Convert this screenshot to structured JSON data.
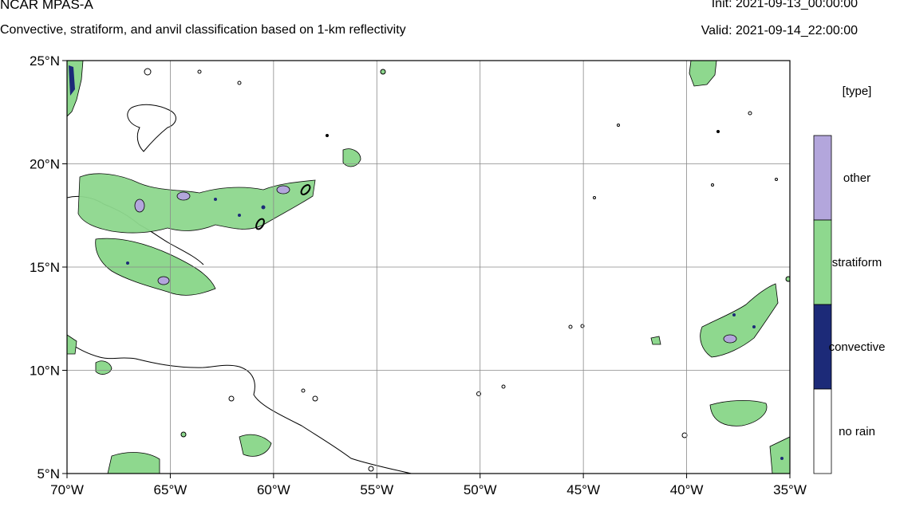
{
  "header": {
    "model": "NCAR MPAS-A",
    "description": "Convective, stratiform, and anvil classification based on 1-km reflectivity",
    "init": "Init: 2021-09-13_00:00:00",
    "valid": "Valid: 2021-09-14_22:00:00"
  },
  "map": {
    "lat_range": [
      5,
      25
    ],
    "lon_range": [
      -70,
      -35
    ],
    "lat_ticks": [
      {
        "value": 5,
        "label": "5°N"
      },
      {
        "value": 10,
        "label": "10°N"
      },
      {
        "value": 15,
        "label": "15°N"
      },
      {
        "value": 20,
        "label": "20°N"
      },
      {
        "value": 25,
        "label": "25°N"
      }
    ],
    "lon_ticks": [
      {
        "value": -70,
        "label": "70°W"
      },
      {
        "value": -65,
        "label": "65°W"
      },
      {
        "value": -60,
        "label": "60°W"
      },
      {
        "value": -55,
        "label": "55°W"
      },
      {
        "value": -50,
        "label": "50°W"
      },
      {
        "value": -45,
        "label": "45°W"
      },
      {
        "value": -40,
        "label": "40°W"
      },
      {
        "value": -35,
        "label": "35°W"
      }
    ],
    "grid": true,
    "colors": {
      "stratiform": "#8ed88e",
      "convective": "#1c2a78",
      "other": "#b3a6dc",
      "no_rain": "#ffffff",
      "coast": "#000000",
      "grid": "#8a8a8a"
    }
  },
  "legend": {
    "title": "[type]",
    "placement": "right",
    "entries": [
      {
        "label": "other",
        "color": "#b3a6dc"
      },
      {
        "label": "stratiform",
        "color": "#8ed88e"
      },
      {
        "label": "convective",
        "color": "#1c2a78"
      },
      {
        "label": "no rain",
        "color": "#ffffff"
      }
    ]
  }
}
